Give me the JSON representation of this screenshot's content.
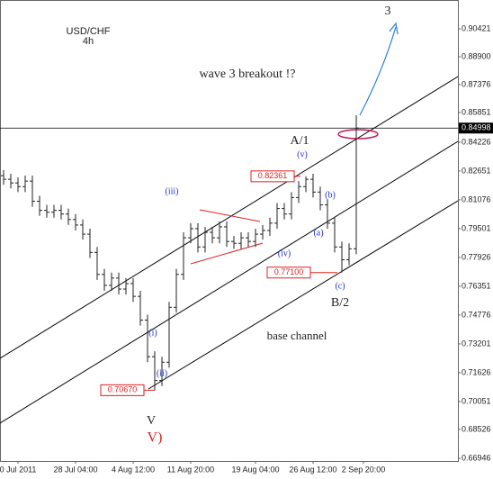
{
  "chart_data": {
    "type": "ohlc",
    "title": "USD/CHF",
    "subtitle": "4h",
    "categories": [
      null,
      null,
      "0 Jul 2011",
      null,
      null,
      null,
      null,
      null,
      null,
      null,
      "28 Jul 04:00",
      null,
      null,
      null,
      null,
      null,
      null,
      null,
      "4 Aug 12:00",
      null,
      null,
      null,
      null,
      null,
      null,
      null,
      "11 Aug 20:00",
      null,
      null,
      null,
      null,
      null,
      null,
      null,
      null,
      "19 Aug 04:00",
      null,
      null,
      null,
      null,
      null,
      null,
      null,
      "26 Aug 12:00",
      null,
      null,
      null,
      null,
      null,
      null,
      "2 Sep 20:00",
      null,
      null,
      null,
      null,
      null,
      null,
      null,
      null,
      null,
      null,
      null,
      null
    ],
    "open": [
      0.824,
      0.822,
      0.82,
      0.818,
      0.821,
      0.81,
      0.805,
      0.804,
      0.805,
      0.803,
      0.8,
      0.797,
      0.792,
      0.782,
      0.77,
      0.764,
      0.768,
      0.762,
      0.765,
      0.758,
      0.745,
      0.725,
      0.712,
      0.722,
      0.752,
      0.77,
      0.79,
      0.795,
      0.785,
      0.793,
      0.79,
      0.796,
      0.788,
      0.787,
      0.79,
      0.788,
      0.792,
      0.794,
      0.798,
      0.806,
      0.803,
      0.812,
      0.818,
      0.822,
      0.815,
      0.808,
      0.798,
      0.785,
      0.778,
      0.784,
      null,
      null,
      null,
      null,
      null,
      null,
      null,
      null,
      null,
      null,
      null,
      null,
      null
    ],
    "high": [
      0.827,
      0.825,
      0.823,
      0.824,
      0.824,
      0.813,
      0.808,
      0.808,
      0.808,
      0.806,
      0.803,
      0.8,
      0.795,
      0.785,
      0.773,
      0.771,
      0.771,
      0.768,
      0.768,
      0.761,
      0.748,
      0.728,
      0.725,
      0.755,
      0.773,
      0.793,
      0.798,
      0.798,
      0.796,
      0.796,
      0.799,
      0.799,
      0.791,
      0.793,
      0.793,
      0.795,
      0.797,
      0.801,
      0.809,
      0.809,
      0.815,
      0.821,
      0.8236,
      0.825,
      0.818,
      0.811,
      0.801,
      0.788,
      0.787,
      0.857,
      null,
      null,
      null,
      null,
      null,
      null,
      null,
      null,
      null,
      null,
      null,
      null,
      null
    ],
    "low": [
      0.819,
      0.817,
      0.815,
      0.815,
      0.807,
      0.802,
      0.801,
      0.801,
      0.8,
      0.797,
      0.794,
      0.789,
      0.779,
      0.767,
      0.761,
      0.761,
      0.759,
      0.759,
      0.755,
      0.742,
      0.722,
      0.7067,
      0.709,
      0.719,
      0.749,
      0.767,
      0.787,
      0.782,
      0.782,
      0.787,
      0.787,
      0.785,
      0.784,
      0.784,
      0.785,
      0.785,
      0.789,
      0.791,
      0.795,
      0.8,
      0.8,
      0.809,
      0.815,
      0.812,
      0.805,
      0.795,
      0.782,
      0.771,
      0.775,
      0.781,
      null,
      null,
      null,
      null,
      null,
      null,
      null,
      null,
      null,
      null,
      null,
      null,
      null
    ],
    "close": [
      0.822,
      0.82,
      0.818,
      0.821,
      0.81,
      0.805,
      0.804,
      0.805,
      0.803,
      0.8,
      0.797,
      0.792,
      0.782,
      0.77,
      0.764,
      0.768,
      0.762,
      0.765,
      0.758,
      0.745,
      0.725,
      0.712,
      0.722,
      0.752,
      0.77,
      0.79,
      0.795,
      0.785,
      0.793,
      0.79,
      0.796,
      0.788,
      0.787,
      0.79,
      0.788,
      0.792,
      0.794,
      0.798,
      0.806,
      0.803,
      0.812,
      0.818,
      0.822,
      0.815,
      0.808,
      0.798,
      0.785,
      0.778,
      0.784,
      0.85,
      null,
      null,
      null,
      null,
      null,
      null,
      null,
      null,
      null,
      null,
      null,
      null,
      null
    ],
    "color": "#222222",
    "ylim": [
      0.668,
      0.92
    ],
    "yticks": [
      0.90421,
      {
        "value": 0.889,
        "label": "0.88900"
      },
      0.87376,
      0.85851,
      0.84226,
      0.82651,
      0.81076,
      0.79501,
      0.77926,
      0.76351,
      0.74776,
      0.73201,
      0.71626,
      0.70051,
      0.68526,
      0.66946
    ],
    "current_price": 0.84998,
    "levels": [
      0.82361,
      {
        "value": 0.771,
        "label": "0.77100"
      },
      {
        "value": 0.7067,
        "label": "0.70670"
      }
    ],
    "annotations": [
      "3",
      "wave 3 breakout !?",
      "A/1",
      "(v)",
      "(iii)",
      "(b)",
      "(a)",
      "(iv)",
      "(c)",
      "B/2",
      "(i)",
      "(ii)",
      "base channel",
      "V",
      "V)"
    ]
  }
}
